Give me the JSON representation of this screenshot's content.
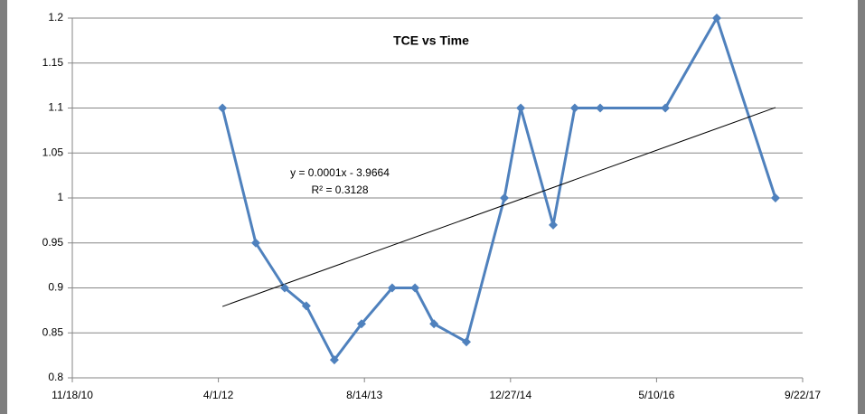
{
  "chart_data": {
    "type": "line",
    "title": "TCE vs Time",
    "x": [
      41014,
      41128,
      41227,
      41301,
      41397,
      41490,
      41595,
      41673,
      41738,
      41849,
      41979,
      42035,
      42146,
      42220,
      42307,
      42530,
      42706,
      42907
    ],
    "values": [
      1.1,
      0.95,
      0.9,
      0.88,
      0.82,
      0.86,
      0.9,
      0.9,
      0.86,
      0.84,
      1.0,
      1.1,
      0.97,
      1.1,
      1.1,
      1.1,
      1.2,
      1.0
    ],
    "color": "#4f81bd",
    "xlim": [
      40500,
      43000
    ],
    "xticks": [
      {
        "value": 40500,
        "label": "11/18/10"
      },
      {
        "value": 41000,
        "label": "4/1/12"
      },
      {
        "value": 41500,
        "label": "8/14/13"
      },
      {
        "value": 42000,
        "label": "12/27/14"
      },
      {
        "value": 42500,
        "label": "5/10/16"
      },
      {
        "value": 43000,
        "label": "9/22/17"
      }
    ],
    "ylim": [
      0.8,
      1.2
    ],
    "yticks": [
      0.8,
      0.85,
      0.9,
      0.95,
      1,
      1.05,
      1.1,
      1.15,
      1.2
    ],
    "grid": true,
    "annotations": [
      "y = 0.0001x - 3.9664",
      "R² = 0.3128"
    ]
  }
}
